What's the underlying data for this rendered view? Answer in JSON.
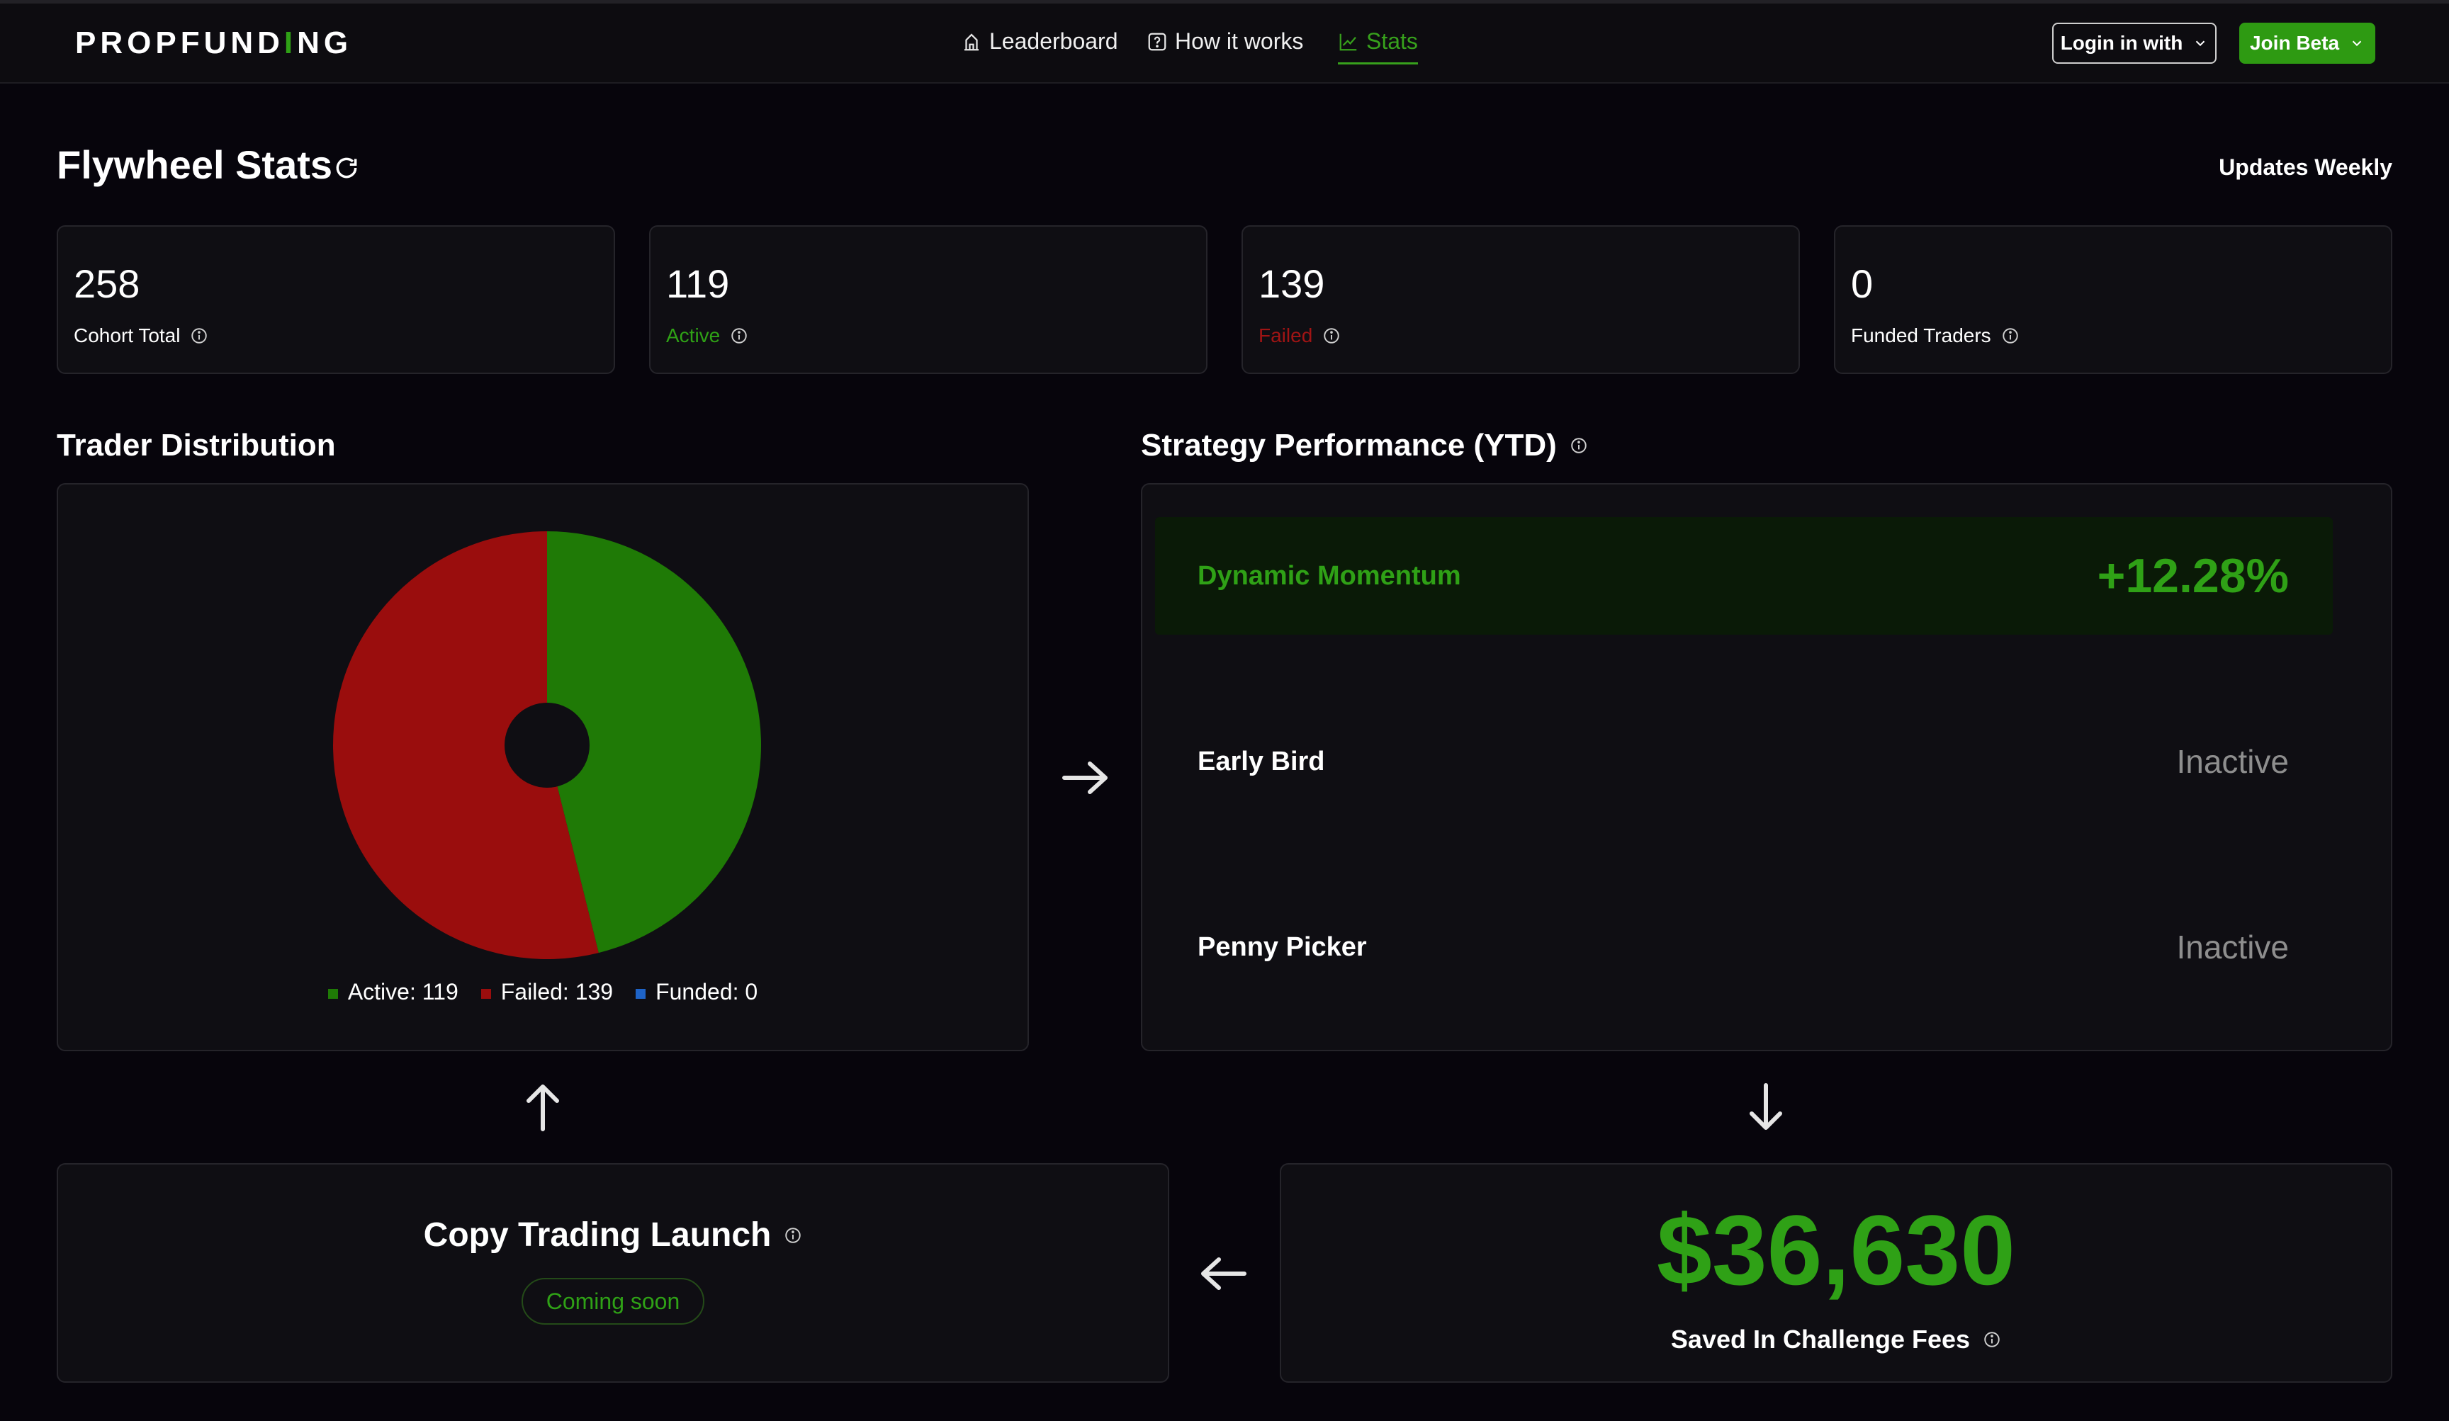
{
  "header": {
    "logo_left": "PROPFUND",
    "logo_accent": "I",
    "logo_right": "NG",
    "nav": {
      "leaderboard": "Leaderboard",
      "how_it_works": "How it works",
      "stats": "Stats"
    },
    "login_label": "Login in with",
    "join_label": "Join Beta"
  },
  "page": {
    "title": "Flywheel Stats",
    "updates": "Updates Weekly"
  },
  "stats": {
    "cohort_total": {
      "value": "258",
      "label": "Cohort Total"
    },
    "active": {
      "value": "119",
      "label": "Active"
    },
    "failed": {
      "value": "139",
      "label": "Failed"
    },
    "funded": {
      "value": "0",
      "label": "Funded Traders"
    }
  },
  "distribution": {
    "title": "Trader Distribution",
    "legend": {
      "active": "Active: 119",
      "failed": "Failed: 139",
      "funded": "Funded: 0"
    }
  },
  "chart_data": {
    "type": "pie",
    "title": "Trader Distribution",
    "categories": [
      "Active",
      "Failed",
      "Funded"
    ],
    "values": [
      119,
      139,
      0
    ],
    "colors": [
      "#1f7a06",
      "#9a0d0d",
      "#1e63c7"
    ],
    "legend_position": "bottom"
  },
  "strategy": {
    "title": "Strategy Performance (YTD)",
    "rows": [
      {
        "name": "Dynamic Momentum",
        "value": "+12.28%"
      },
      {
        "name": "Early Bird",
        "value": "Inactive"
      },
      {
        "name": "Penny Picker",
        "value": "Inactive"
      }
    ]
  },
  "copy_trading": {
    "title": "Copy Trading Launch",
    "status": "Coming soon"
  },
  "savings": {
    "amount": "$36,630",
    "label": "Saved In Challenge Fees"
  },
  "colors": {
    "accent": "#2fa116",
    "danger": "#a01414",
    "background": "#07050c"
  }
}
